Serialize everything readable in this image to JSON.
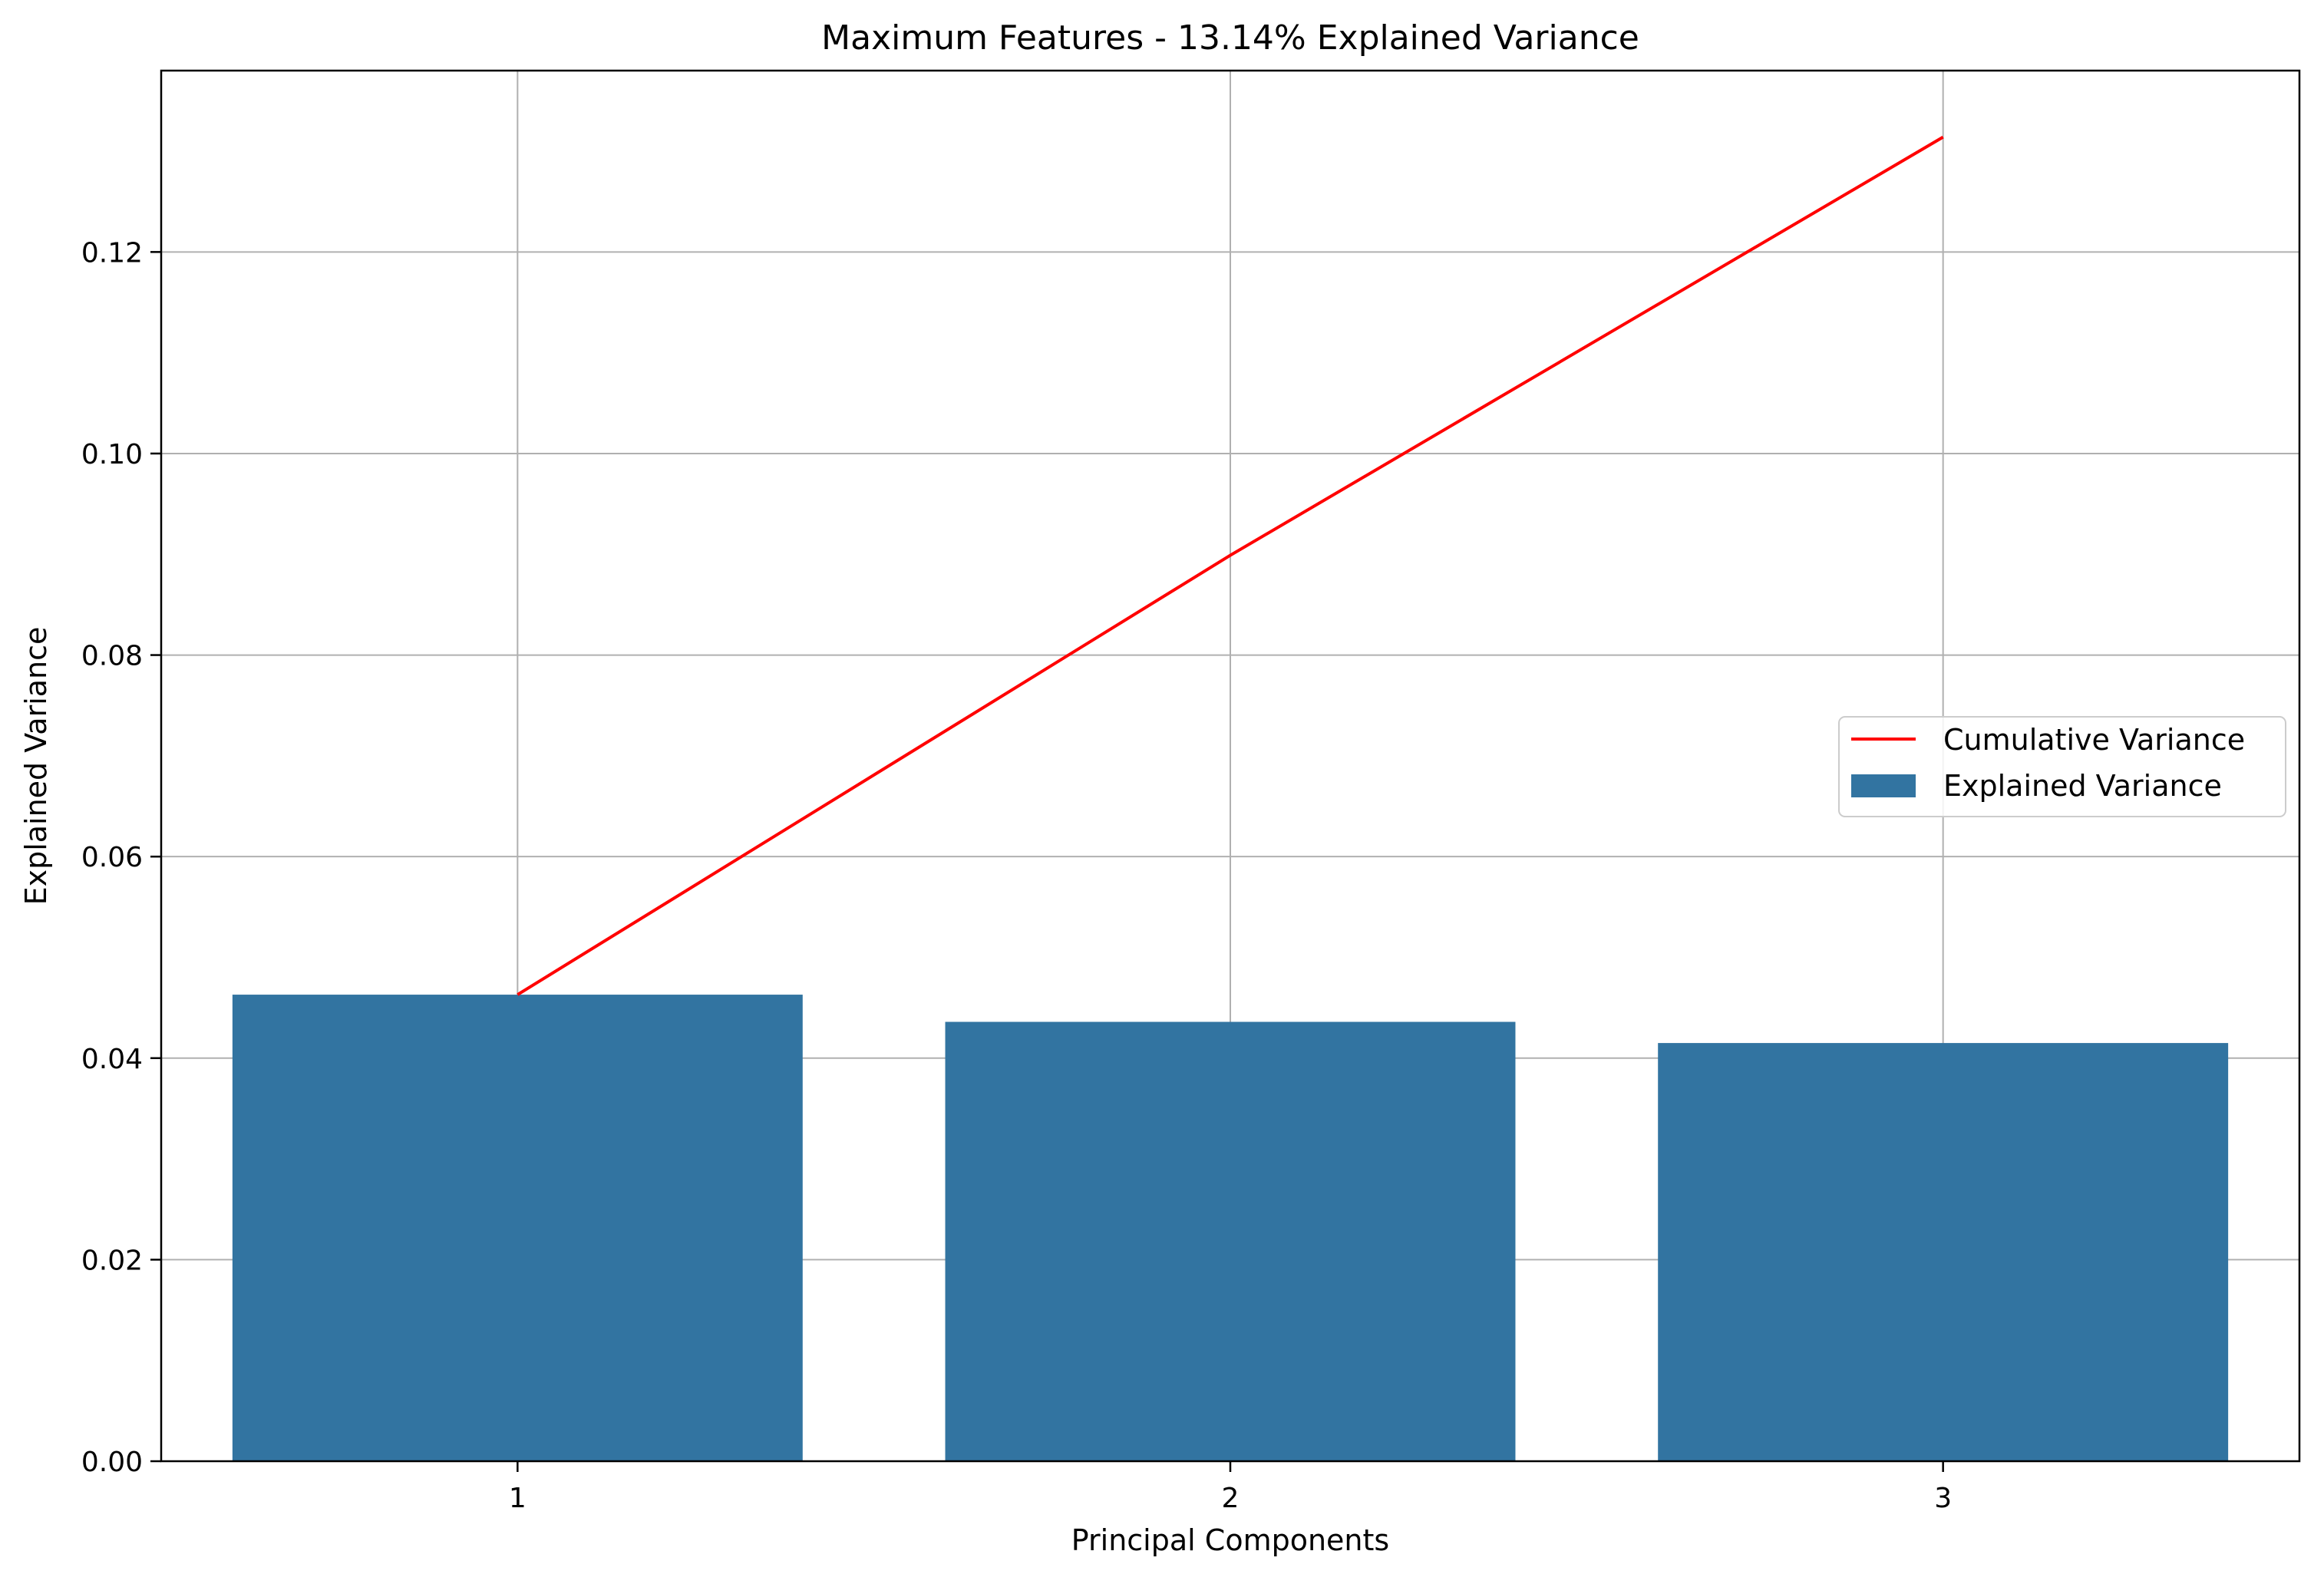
{
  "chart_data": {
    "type": "bar",
    "title": "Maximum Features - 13.14% Explained Variance",
    "xlabel": "Principal Components",
    "ylabel": "Explained Variance",
    "categories": [
      "1",
      "2",
      "3"
    ],
    "ylim": [
      0,
      0.138
    ],
    "yticks": [
      0.0,
      0.02,
      0.04,
      0.06,
      0.08,
      0.1,
      0.12
    ],
    "ytick_labels": [
      "0.00",
      "0.02",
      "0.04",
      "0.06",
      "0.08",
      "0.10",
      "0.12"
    ],
    "grid": true,
    "legend_position": "center-right",
    "series": [
      {
        "name": "Explained Variance",
        "type": "bar",
        "color": "#3274a1",
        "values": [
          0.0463,
          0.0436,
          0.0415
        ]
      },
      {
        "name": "Cumulative Variance",
        "type": "line",
        "color": "#ff0000",
        "values": [
          0.0463,
          0.0899,
          0.1314
        ]
      }
    ]
  }
}
